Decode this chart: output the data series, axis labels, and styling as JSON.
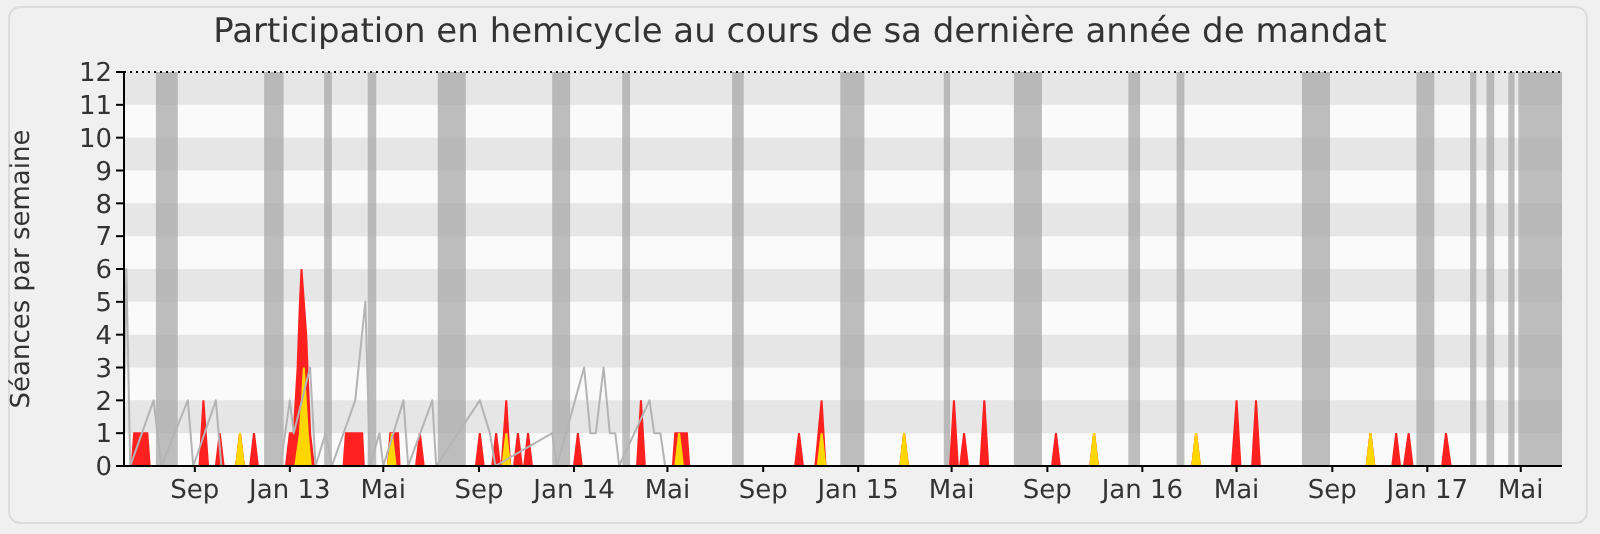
{
  "chart_data": {
    "type": "area",
    "title": "Participation en hemicycle au cours de sa dernière année de mandat",
    "ylabel": "Séances par semaine",
    "xlim": [
      "2012-06-02",
      "2017-06-23"
    ],
    "xticks": [
      {
        "value": "2012-09-01",
        "label": "Sep"
      },
      {
        "value": "2013-01-01",
        "label": "Jan 13"
      },
      {
        "value": "2013-05-01",
        "label": "Mai"
      },
      {
        "value": "2013-09-01",
        "label": "Sep"
      },
      {
        "value": "2014-01-01",
        "label": "Jan 14"
      },
      {
        "value": "2014-05-01",
        "label": "Mai"
      },
      {
        "value": "2014-09-01",
        "label": "Sep"
      },
      {
        "value": "2015-01-01",
        "label": "Jan 15"
      },
      {
        "value": "2015-05-01",
        "label": "Mai"
      },
      {
        "value": "2015-09-01",
        "label": "Sep"
      },
      {
        "value": "2016-01-01",
        "label": "Jan 16"
      },
      {
        "value": "2016-05-01",
        "label": "Mai"
      },
      {
        "value": "2016-09-01",
        "label": "Sep"
      },
      {
        "value": "2017-01-01",
        "label": "Jan 17"
      },
      {
        "value": "2017-05-01",
        "label": "Mai"
      }
    ],
    "ylim": [
      0,
      12
    ],
    "yticks": [
      0,
      1,
      2,
      3,
      4,
      5,
      6,
      7,
      8,
      9,
      10,
      11,
      12
    ],
    "bands": [
      {
        "axis": "y",
        "from": 11,
        "to": 12,
        "color": "#e6e6e6"
      },
      {
        "axis": "y",
        "from": 9,
        "to": 10,
        "color": "#e6e6e6"
      },
      {
        "axis": "y",
        "from": 7,
        "to": 8,
        "color": "#e6e6e6"
      },
      {
        "axis": "y",
        "from": 5,
        "to": 6,
        "color": "#e6e6e6"
      },
      {
        "axis": "y",
        "from": 3,
        "to": 4,
        "color": "#e6e6e6"
      },
      {
        "axis": "y",
        "from": 1,
        "to": 2,
        "color": "#e6e6e6"
      },
      {
        "axis": "x",
        "from": "2012-07-13",
        "to": "2012-08-10",
        "color": "#a8a8a8"
      },
      {
        "axis": "x",
        "from": "2012-11-29",
        "to": "2012-12-24",
        "color": "#a8a8a8"
      },
      {
        "axis": "x",
        "from": "2013-02-14",
        "to": "2013-02-24",
        "color": "#a8a8a8"
      },
      {
        "axis": "x",
        "from": "2013-04-11",
        "to": "2013-04-22",
        "color": "#a8a8a8"
      },
      {
        "axis": "x",
        "from": "2013-07-10",
        "to": "2013-08-15",
        "color": "#a8a8a8"
      },
      {
        "axis": "x",
        "from": "2013-12-04",
        "to": "2013-12-27",
        "color": "#a8a8a8"
      },
      {
        "axis": "x",
        "from": "2014-03-04",
        "to": "2014-03-14",
        "color": "#a8a8a8"
      },
      {
        "axis": "x",
        "from": "2014-07-23",
        "to": "2014-08-07",
        "color": "#a8a8a8"
      },
      {
        "axis": "x",
        "from": "2014-12-09",
        "to": "2015-01-09",
        "color": "#a8a8a8"
      },
      {
        "axis": "x",
        "from": "2015-04-21",
        "to": "2015-04-29",
        "color": "#a8a8a8"
      },
      {
        "axis": "x",
        "from": "2015-07-20",
        "to": "2015-08-25",
        "color": "#a8a8a8"
      },
      {
        "axis": "x",
        "from": "2015-12-14",
        "to": "2015-12-29",
        "color": "#a8a8a8"
      },
      {
        "axis": "x",
        "from": "2016-02-14",
        "to": "2016-02-24",
        "color": "#a8a8a8"
      },
      {
        "axis": "x",
        "from": "2016-07-24",
        "to": "2016-08-29",
        "color": "#a8a8a8"
      },
      {
        "axis": "x",
        "from": "2016-12-18",
        "to": "2017-01-10",
        "color": "#a8a8a8"
      },
      {
        "axis": "x",
        "from": "2017-02-25",
        "to": "2017-03-05",
        "color": "#a8a8a8"
      },
      {
        "axis": "x",
        "from": "2017-03-18",
        "to": "2017-03-28",
        "color": "#a8a8a8"
      },
      {
        "axis": "x",
        "from": "2017-04-15",
        "to": "2017-04-23",
        "color": "#a8a8a8"
      },
      {
        "axis": "x",
        "from": "2017-04-28",
        "to": "2017-06-23",
        "color": "#a8a8a8"
      }
    ],
    "ref_lines": [
      {
        "axis": "y",
        "value": 12,
        "color": "#000000",
        "line_style": "dotted"
      }
    ],
    "series": [
      {
        "type": "line",
        "color": "#b4b4b4",
        "x": [
          "2012-06-02",
          "2012-06-05",
          "2012-06-10",
          "2012-07-10",
          "2012-07-20",
          "2012-08-23",
          "2012-08-30",
          "2012-09-28",
          "2012-10-05",
          "2012-12-20",
          "2013-01-01",
          "2013-01-06",
          "2013-01-27",
          "2013-02-03",
          "2013-02-16",
          "2013-02-24",
          "2013-03-26",
          "2013-04-08",
          "2013-04-14",
          "2013-04-26",
          "2013-05-01",
          "2013-05-27",
          "2013-06-02",
          "2013-07-03",
          "2013-07-08",
          "2013-09-02",
          "2013-09-15",
          "2013-09-22",
          "2013-12-04",
          "2013-12-10",
          "2014-01-14",
          "2014-01-22",
          "2014-01-29",
          "2014-02-08",
          "2014-02-16",
          "2014-02-23",
          "2014-02-28",
          "2014-04-08",
          "2014-04-14",
          "2014-04-22",
          "2014-04-28"
        ],
        "values": [
          2,
          6,
          0,
          2,
          0,
          2,
          0,
          2,
          0,
          0,
          2,
          1,
          3,
          0,
          1,
          0,
          2,
          5,
          0,
          1,
          0,
          2,
          0,
          2,
          0,
          2,
          1,
          0,
          1,
          0,
          3,
          1,
          1,
          3,
          1,
          1,
          0,
          2,
          1,
          1,
          0
        ]
      },
      {
        "color": "#ff2020",
        "x": [
          "2012-06-02",
          "2012-06-12",
          "2012-06-15",
          "2012-07-02",
          "2012-07-05",
          "2012-09-07",
          "2012-09-12",
          "2012-09-18",
          "2012-09-28",
          "2012-10-03",
          "2012-10-08",
          "2012-10-24",
          "2012-10-29",
          "2012-11-03",
          "2012-11-11",
          "2012-11-16",
          "2012-11-21",
          "2012-12-27",
          "2013-01-01",
          "2013-01-06",
          "2013-01-11",
          "2013-01-14",
          "2013-01-16",
          "2013-01-19",
          "2013-01-22",
          "2013-01-27",
          "2013-02-01",
          "2013-03-11",
          "2013-03-14",
          "2013-04-04",
          "2013-04-06",
          "2013-05-07",
          "2013-05-10",
          "2013-05-20",
          "2013-05-22",
          "2013-06-12",
          "2013-06-17",
          "2013-06-22",
          "2013-08-28",
          "2013-09-02",
          "2013-09-07",
          "2013-09-18",
          "2013-09-23",
          "2013-09-28",
          "2013-09-30",
          "2013-10-06",
          "2013-10-11",
          "2013-10-16",
          "2013-10-21",
          "2013-10-26",
          "2013-10-29",
          "2013-11-03",
          "2013-11-08",
          "2014-01-01",
          "2014-01-06",
          "2014-01-11",
          "2014-03-23",
          "2014-03-28",
          "2014-04-02",
          "2014-05-08",
          "2014-05-11",
          "2014-05-26",
          "2014-05-29",
          "2014-10-12",
          "2014-10-17",
          "2014-10-22",
          "2014-11-07",
          "2014-11-15",
          "2014-11-20",
          "2015-02-24",
          "2015-03-01",
          "2015-03-06",
          "2015-04-29",
          "2015-05-04",
          "2015-05-09",
          "2015-05-12",
          "2015-05-17",
          "2015-05-22",
          "2015-06-07",
          "2015-06-12",
          "2015-06-17",
          "2015-09-07",
          "2015-09-12",
          "2015-09-17",
          "2015-10-26",
          "2015-10-31",
          "2015-11-05",
          "2016-03-05",
          "2016-03-10",
          "2016-03-15",
          "2016-04-25",
          "2016-05-01",
          "2016-05-06",
          "2016-05-21",
          "2016-05-26",
          "2016-05-31",
          "2016-10-15",
          "2016-10-20",
          "2016-10-25",
          "2016-11-17",
          "2016-11-22",
          "2016-11-27",
          "2016-12-02",
          "2016-12-08",
          "2016-12-13",
          "2017-01-20",
          "2017-01-25",
          "2017-01-31",
          "2017-06-23"
        ],
        "values": [
          0,
          0,
          1,
          1,
          0,
          0,
          2,
          0,
          0,
          1,
          0,
          0,
          1,
          0,
          0,
          1,
          0,
          0,
          1,
          1,
          3,
          5,
          6,
          5,
          4,
          1,
          0,
          0,
          1,
          1,
          0,
          0,
          1,
          1,
          0,
          0,
          1,
          0,
          0,
          1,
          0,
          0,
          1,
          0,
          0,
          2,
          0,
          0,
          1,
          0,
          0,
          1,
          0,
          0,
          1,
          0,
          0,
          2,
          0,
          0,
          1,
          1,
          0,
          0,
          1,
          0,
          0,
          2,
          0,
          0,
          1,
          0,
          0,
          2,
          0,
          0,
          1,
          0,
          0,
          2,
          0,
          0,
          1,
          0,
          0,
          1,
          0,
          0,
          1,
          0,
          0,
          2,
          0,
          0,
          2,
          0,
          0,
          1,
          0,
          0,
          1,
          0,
          0,
          1,
          0,
          0,
          1,
          0,
          0
        ]
      },
      {
        "color": "#ffd700",
        "x": [
          "2012-06-02",
          "2012-10-24",
          "2012-10-29",
          "2012-11-03",
          "2013-01-08",
          "2013-01-14",
          "2013-01-19",
          "2013-01-24",
          "2013-01-28",
          "2013-05-07",
          "2013-05-12",
          "2013-05-17",
          "2013-10-01",
          "2013-10-06",
          "2013-10-11",
          "2014-05-11",
          "2014-05-16",
          "2014-05-21",
          "2014-11-10",
          "2014-11-15",
          "2014-11-20",
          "2015-02-24",
          "2015-03-01",
          "2015-03-06",
          "2015-10-26",
          "2015-10-31",
          "2015-11-05",
          "2016-03-05",
          "2016-03-10",
          "2016-03-15",
          "2016-10-15",
          "2016-10-20",
          "2016-10-25",
          "2017-06-23"
        ],
        "values": [
          0,
          0,
          1,
          0,
          0,
          1,
          3,
          1,
          0,
          0,
          1,
          0,
          0,
          1,
          0,
          0,
          1,
          0,
          0,
          1,
          0,
          0,
          1,
          0,
          0,
          1,
          0,
          0,
          1,
          0,
          0,
          1,
          0,
          0
        ]
      }
    ]
  }
}
